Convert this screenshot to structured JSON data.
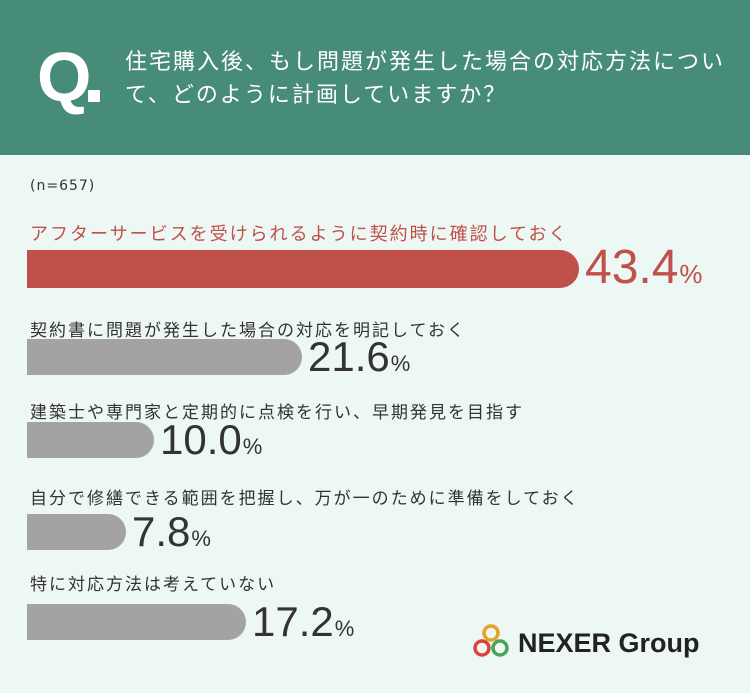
{
  "header": {
    "q_mark": "Q",
    "question": "住宅購入後、もし問題が発生した場合の対応方法について、どのように計画していますか？"
  },
  "sample_size": "(n=657)",
  "chart_data": {
    "type": "bar",
    "orientation": "horizontal",
    "unit": "%",
    "categories": [
      "アフターサービスを受けられるように契約時に確認しておく",
      "契約書に問題が発生した場合の対応を明記しておく",
      "建築士や専門家と定期的に点検を行い、早期発見を目指す",
      "自分で修繕できる範囲を把握し、万が一のために準備をしておく",
      "特に対応方法は考えていない"
    ],
    "values": [
      43.4,
      21.6,
      10.0,
      7.8,
      17.2
    ],
    "value_labels": [
      "43.4",
      "21.6",
      "10.0",
      "7.8",
      "17.2"
    ],
    "highlight_color": "#c0504a",
    "bar_color": "#a3a3a3"
  },
  "logo": {
    "text": "NEXER Group"
  },
  "colors": {
    "header_bg": "#468c79",
    "page_bg": "#edf7f3"
  }
}
